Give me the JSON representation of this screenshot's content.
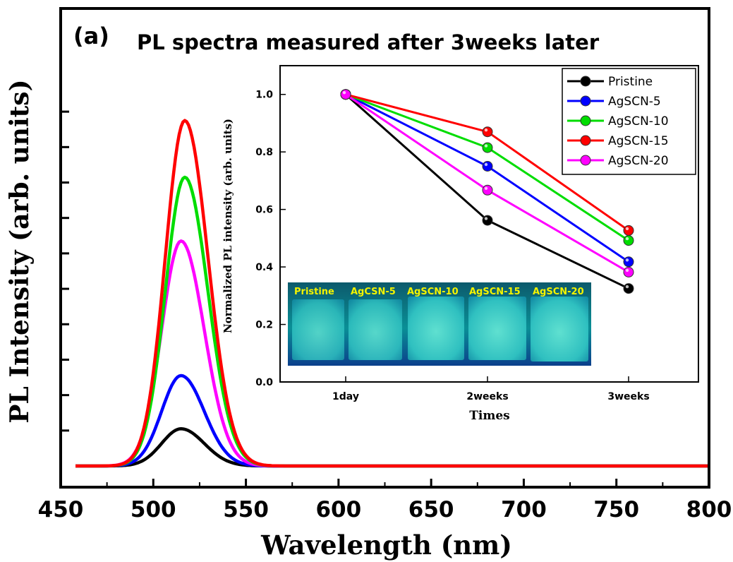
{
  "chart_data": [
    {
      "type": "line",
      "panel_label": "(a)",
      "title": "PL spectra measured after 3weeks later",
      "xlabel": "Wavelength (nm)",
      "ylabel": "PL Intensity (arb. units)",
      "xlim": [
        450,
        800
      ],
      "ylim": [
        0,
        1.08
      ],
      "x_ticks": [
        450,
        500,
        550,
        600,
        650,
        700,
        750,
        800
      ],
      "y_tick_labels_shown": false,
      "grid": false,
      "legend": "none",
      "series": [
        {
          "color": "#000000",
          "peak_wavelength": 515,
          "peak_intensity": 0.105
        },
        {
          "color": "#0000ff",
          "peak_wavelength": 515,
          "peak_intensity": 0.255
        },
        {
          "color": "#ff00ff",
          "peak_wavelength": 515,
          "peak_intensity": 0.635
        },
        {
          "color": "#00dd00",
          "peak_wavelength": 517,
          "peak_intensity": 0.815
        },
        {
          "color": "#ff0000",
          "peak_wavelength": 517,
          "peak_intensity": 0.975
        }
      ]
    },
    {
      "type": "line",
      "role": "inset",
      "xlabel": "Times",
      "ylabel": "Normalized PL intensity (arb. units)",
      "categories": [
        "1day",
        "2weeks",
        "3weeks"
      ],
      "ylim": [
        0,
        1.1
      ],
      "y_ticks": [
        "0.0",
        "0.2",
        "0.4",
        "0.6",
        "0.8",
        "1.0"
      ],
      "legend": "top-right",
      "series": [
        {
          "name": "Pristine",
          "color": "#000000",
          "values": [
            1.0,
            0.562,
            0.325
          ]
        },
        {
          "name": "AgSCN-5",
          "color": "#0000ff",
          "values": [
            1.0,
            0.75,
            0.418
          ]
        },
        {
          "name": "AgSCN-10",
          "color": "#00dd00",
          "values": [
            1.0,
            0.815,
            0.492
          ]
        },
        {
          "name": "AgSCN-15",
          "color": "#ff0000",
          "values": [
            1.0,
            0.87,
            0.527
          ]
        },
        {
          "name": "AgSCN-20",
          "color": "#ff00ff",
          "values": [
            1.0,
            0.667,
            0.382
          ]
        }
      ],
      "photo_labels": [
        "Pristine",
        "AgCSN-5",
        "AgSCN-10",
        "AgSCN-15",
        "AgSCN-20"
      ]
    }
  ]
}
